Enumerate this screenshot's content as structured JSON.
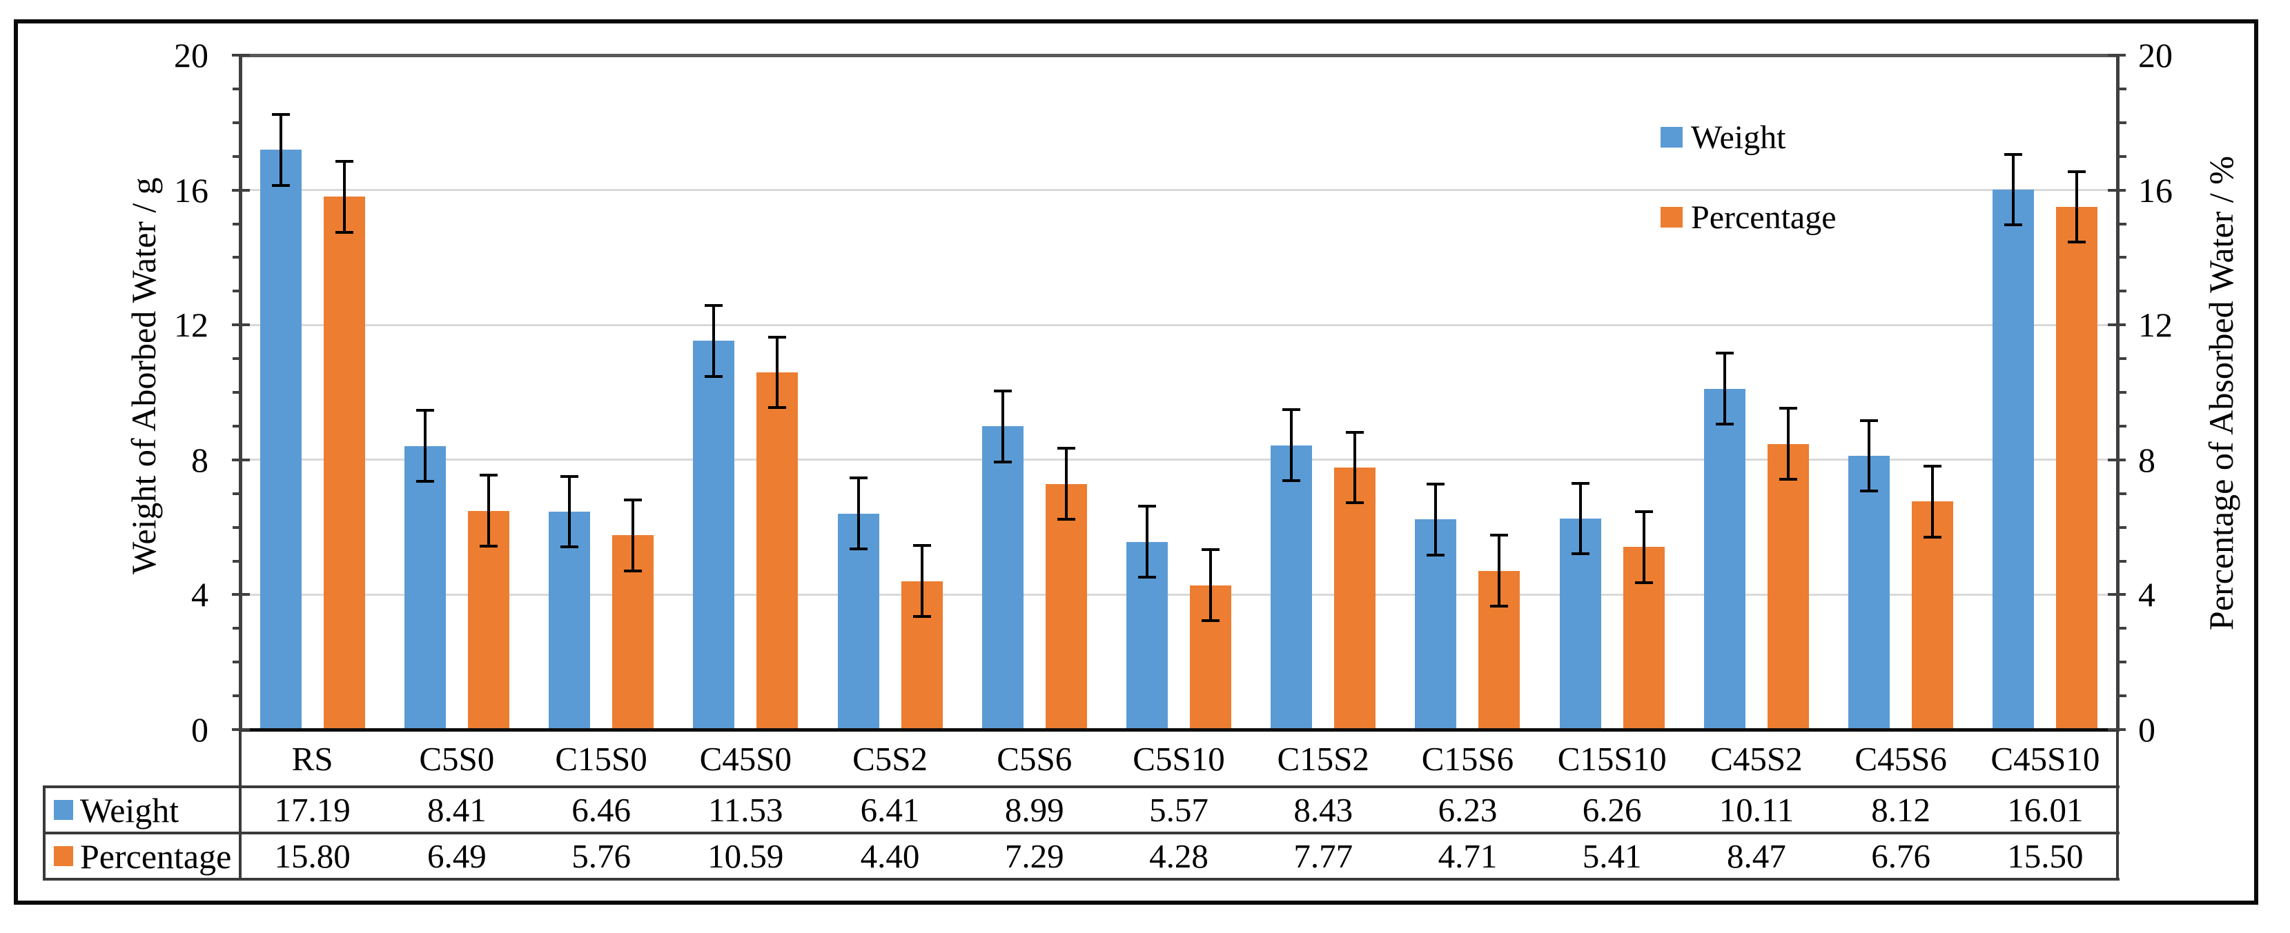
{
  "figure": {
    "background": "#ffffff",
    "border_color": "#0a0a0a"
  },
  "chart_data": {
    "type": "bar",
    "title": "",
    "categories": [
      "RS",
      "C5S0",
      "C15S0",
      "C45S0",
      "C5S2",
      "C5S6",
      "C5S10",
      "C15S2",
      "C15S6",
      "C15S10",
      "C45S2",
      "C45S6",
      "C45S10"
    ],
    "series": [
      {
        "name": "Weight",
        "color": "#5B9BD5",
        "axis": "left",
        "values": [
          17.19,
          8.41,
          6.46,
          11.53,
          6.41,
          8.99,
          5.57,
          8.43,
          6.23,
          6.26,
          10.11,
          8.12,
          16.01
        ],
        "error_bar": 1.05
      },
      {
        "name": "Percentage",
        "color": "#ED7D31",
        "axis": "right",
        "values": [
          15.8,
          6.49,
          5.76,
          10.59,
          4.4,
          7.29,
          4.28,
          7.77,
          4.71,
          5.41,
          8.47,
          6.76,
          15.5
        ],
        "error_bar": 1.05
      }
    ],
    "y_axis_left": {
      "title": "Weight of Aborbed Water / g",
      "min": 0,
      "max": 20,
      "major_unit": 4,
      "minor_unit": 1,
      "tick_labels": [
        "0",
        "4",
        "8",
        "12",
        "16",
        "20"
      ]
    },
    "y_axis_right": {
      "title": "Percentage of Absorbed Water / %",
      "min": 0,
      "max": 20,
      "major_unit": 4,
      "minor_unit": 1,
      "tick_labels": [
        "0",
        "4",
        "8",
        "12",
        "16",
        "20"
      ]
    },
    "grid": {
      "horizontal_values": [
        4,
        8,
        12,
        16
      ],
      "color": "#D9D9D9"
    },
    "error_bar_color": "#000000",
    "legend": {
      "position": "inside-top-right",
      "entries": [
        {
          "label": "Weight",
          "color": "#5B9BD5"
        },
        {
          "label": "Percentage",
          "color": "#ED7D31"
        }
      ]
    },
    "data_table": {
      "rows": [
        {
          "label": "Weight",
          "color": "#5B9BD5",
          "cells": [
            "17.19",
            "8.41",
            "6.46",
            "11.53",
            "6.41",
            "8.99",
            "5.57",
            "8.43",
            "6.23",
            "6.26",
            "10.11",
            "8.12",
            "16.01"
          ]
        },
        {
          "label": "Percentage",
          "color": "#ED7D31",
          "cells": [
            "15.80",
            "6.49",
            "5.76",
            "10.59",
            "4.40",
            "7.29",
            "4.28",
            "7.77",
            "4.71",
            "5.41",
            "8.47",
            "6.76",
            "15.50"
          ]
        }
      ]
    }
  }
}
